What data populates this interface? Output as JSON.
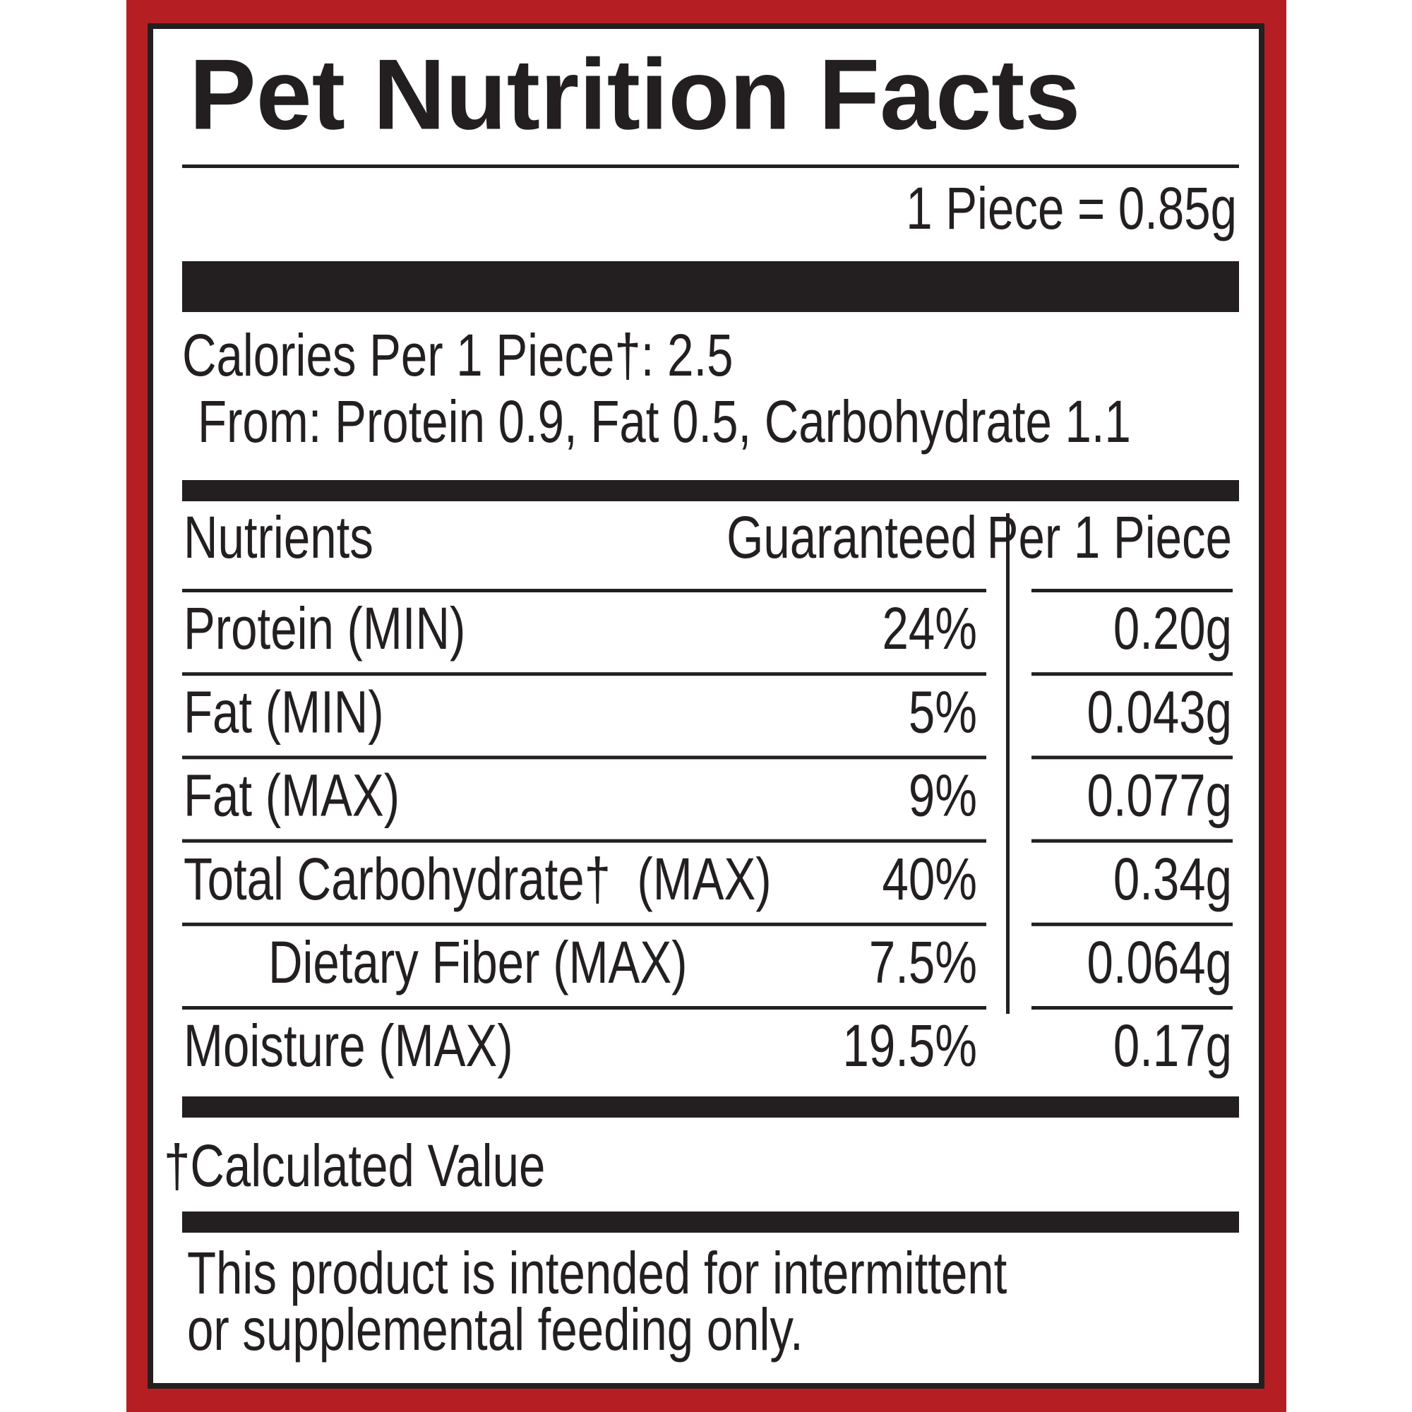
{
  "title": "Pet Nutrition Facts",
  "serving": "1 Piece = 0.85g",
  "calories": "Calories Per 1 Piece†: 2.5",
  "calories_from": "From: Protein 0.9, Fat 0.5, Carbohydrate 1.1",
  "table": {
    "headers": [
      "Nutrients",
      "Guaranteed",
      "Per 1 Piece"
    ],
    "rows": [
      [
        "Protein (MIN)",
        "24%",
        "0.20g"
      ],
      [
        "Fat (MIN)",
        "5%",
        "0.043g"
      ],
      [
        "Fat (MAX)",
        "9%",
        "0.077g"
      ],
      [
        "Total Carbohydrate†  (MAX)",
        "40%",
        "0.34g"
      ],
      [
        "Dietary Fiber (MAX)",
        "7.5%",
        "0.064g"
      ],
      [
        "Moisture (MAX)",
        "19.5%",
        "0.17g"
      ]
    ]
  },
  "footnote": "†Calculated Value",
  "disclaimer": [
    "This product is intended for intermittent",
    "or supplemental feeding only."
  ]
}
